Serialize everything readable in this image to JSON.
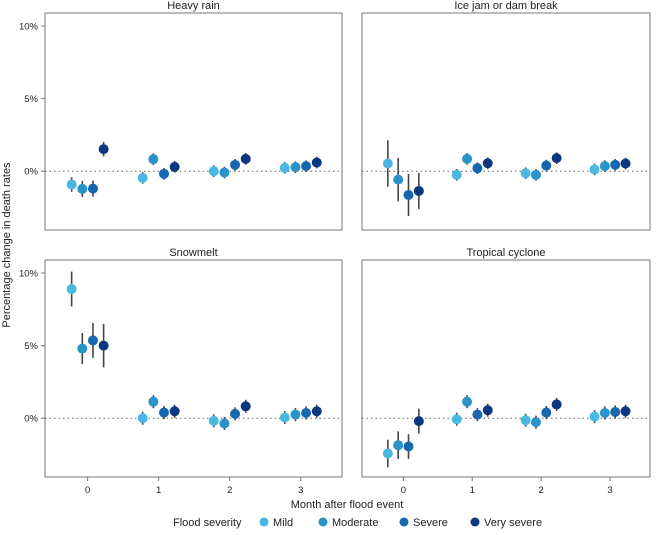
{
  "chart_data": {
    "type": "scatter",
    "subtype": "point-range, faceted 2x2",
    "ylabel": "Percentage change in death rates",
    "xlabel": "Month after flood event",
    "x_ticks": [
      "0",
      "1",
      "2",
      "3"
    ],
    "y_ticks": [
      "10%",
      "5%",
      "0%"
    ],
    "y_tick_values": [
      10,
      5,
      0
    ],
    "ylim": [
      -4.05,
      10.9
    ],
    "xlim": [
      -0.6,
      3.58
    ],
    "reference_line": 0,
    "legend": {
      "title": "Flood severity",
      "placement": "bottom",
      "entries": [
        "Mild",
        "Moderate",
        "Severe",
        "Very severe"
      ],
      "colors": [
        "#4ab8e0",
        "#2a93c9",
        "#1767b0",
        "#0d3680"
      ]
    },
    "dodge_offsets": [
      -0.225,
      -0.075,
      0.075,
      0.225
    ],
    "panels": [
      {
        "title": "Heavy rain",
        "months": [
          0,
          1,
          2,
          3
        ],
        "series": [
          {
            "name": "Mild",
            "values": [
              -0.92,
              -0.46,
              0.0,
              0.23
            ],
            "errors": [
              0.5,
              0.4,
              0.4,
              0.4
            ]
          },
          {
            "name": "Moderate",
            "values": [
              -1.22,
              0.83,
              -0.09,
              0.28
            ],
            "errors": [
              0.55,
              0.4,
              0.4,
              0.4
            ]
          },
          {
            "name": "Severe",
            "values": [
              -1.2,
              -0.18,
              0.44,
              0.35
            ],
            "errors": [
              0.55,
              0.4,
              0.4,
              0.4
            ]
          },
          {
            "name": "Very severe",
            "values": [
              1.52,
              0.3,
              0.85,
              0.6
            ],
            "errors": [
              0.5,
              0.4,
              0.4,
              0.4
            ]
          }
        ]
      },
      {
        "title": "Ice jam or dam break",
        "months": [
          0,
          1,
          2,
          3
        ],
        "series": [
          {
            "name": "Mild",
            "values": [
              0.53,
              -0.25,
              -0.14,
              0.12
            ],
            "errors": [
              1.6,
              0.4,
              0.4,
              0.4
            ]
          },
          {
            "name": "Moderate",
            "values": [
              -0.58,
              0.85,
              -0.25,
              0.35
            ],
            "errors": [
              1.5,
              0.4,
              0.4,
              0.4
            ]
          },
          {
            "name": "Severe",
            "values": [
              -1.64,
              0.21,
              0.39,
              0.44
            ],
            "errors": [
              1.45,
              0.4,
              0.4,
              0.4
            ]
          },
          {
            "name": "Very severe",
            "values": [
              -1.36,
              0.55,
              0.9,
              0.53
            ],
            "errors": [
              1.25,
              0.4,
              0.4,
              0.4
            ]
          }
        ]
      },
      {
        "title": "Snowmelt",
        "months": [
          0,
          1,
          2,
          3
        ],
        "series": [
          {
            "name": "Mild",
            "values": [
              8.9,
              0.0,
              -0.18,
              0.05
            ],
            "errors": [
              1.2,
              0.45,
              0.45,
              0.45
            ]
          },
          {
            "name": "Moderate",
            "values": [
              4.8,
              1.14,
              -0.36,
              0.25
            ],
            "errors": [
              1.07,
              0.45,
              0.45,
              0.45
            ]
          },
          {
            "name": "Severe",
            "values": [
              5.36,
              0.39,
              0.3,
              0.36
            ],
            "errors": [
              1.2,
              0.45,
              0.45,
              0.45
            ]
          },
          {
            "name": "Very severe",
            "values": [
              5.0,
              0.48,
              0.82,
              0.48
            ],
            "errors": [
              1.5,
              0.45,
              0.45,
              0.45
            ]
          }
        ]
      },
      {
        "title": "Tropical cyclone",
        "months": [
          0,
          1,
          2,
          3
        ],
        "series": [
          {
            "name": "Mild",
            "values": [
              -2.43,
              -0.07,
              -0.14,
              0.11
            ],
            "errors": [
              0.95,
              0.45,
              0.45,
              0.45
            ]
          },
          {
            "name": "Moderate",
            "values": [
              -1.86,
              1.14,
              -0.27,
              0.36
            ],
            "errors": [
              0.95,
              0.45,
              0.45,
              0.45
            ]
          },
          {
            "name": "Severe",
            "values": [
              -1.95,
              0.25,
              0.39,
              0.43
            ],
            "errors": [
              0.85,
              0.45,
              0.45,
              0.45
            ]
          },
          {
            "name": "Very severe",
            "values": [
              -0.2,
              0.55,
              0.95,
              0.48
            ],
            "errors": [
              0.85,
              0.45,
              0.45,
              0.45
            ]
          }
        ]
      }
    ]
  }
}
